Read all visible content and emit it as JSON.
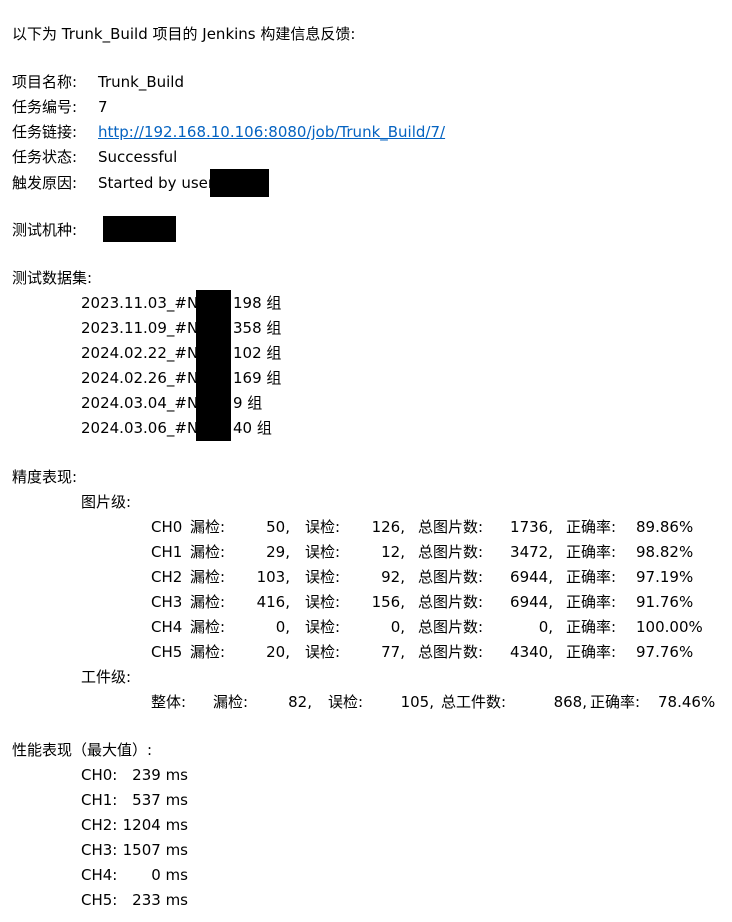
{
  "intro": "以下为 Trunk_Build 项目的 Jenkins 构建信息反馈:",
  "project": {
    "label": "项目名称:",
    "value": "Trunk_Build"
  },
  "build_no": {
    "label": "任务编号:",
    "value": "7"
  },
  "task_link": {
    "label": "任务链接:",
    "value": "http://192.168.10.106:8080/job/Trunk_Build/7/"
  },
  "task_status": {
    "label": "任务状态:",
    "value": "Successful"
  },
  "trigger": {
    "label": "触发原因:",
    "value": "Started by user"
  },
  "test_model": {
    "label": "测试机种:"
  },
  "dataset": {
    "label": "测试数据集:",
    "items": [
      {
        "date": "2023.11.03_#N_",
        "count": "198 组"
      },
      {
        "date": "2023.11.09_#N_",
        "count": "358 组"
      },
      {
        "date": "2024.02.22_#N_",
        "count": "102 组"
      },
      {
        "date": "2024.02.26_#N_",
        "count": "169 组"
      },
      {
        "date": "2024.03.04_#N_",
        "count": "9 组"
      },
      {
        "date": "2024.03.06_#N_",
        "count": "40 组"
      }
    ]
  },
  "accuracy": {
    "label": "精度表现:",
    "image_level": {
      "label": "图片级:",
      "rows": [
        {
          "ch": "CH0",
          "miss_label": "漏检:",
          "miss": "50,",
          "fp_label": "误检:",
          "fp": "126,",
          "total_label": "总图片数:",
          "total": "1736,",
          "acc_label": "正确率:",
          "acc": "89.86%"
        },
        {
          "ch": "CH1",
          "miss_label": "漏检:",
          "miss": "29,",
          "fp_label": "误检:",
          "fp": "12,",
          "total_label": "总图片数:",
          "total": "3472,",
          "acc_label": "正确率:",
          "acc": "98.82%"
        },
        {
          "ch": "CH2",
          "miss_label": "漏检:",
          "miss": "103,",
          "fp_label": "误检:",
          "fp": "92,",
          "total_label": "总图片数:",
          "total": "6944,",
          "acc_label": "正确率:",
          "acc": "97.19%"
        },
        {
          "ch": "CH3",
          "miss_label": "漏检:",
          "miss": "416,",
          "fp_label": "误检:",
          "fp": "156,",
          "total_label": "总图片数:",
          "total": "6944,",
          "acc_label": "正确率:",
          "acc": "91.76%"
        },
        {
          "ch": "CH4",
          "miss_label": "漏检:",
          "miss": "0,",
          "fp_label": "误检:",
          "fp": "0,",
          "total_label": "总图片数:",
          "total": "0,",
          "acc_label": "正确率:",
          "acc": "100.00%"
        },
        {
          "ch": "CH5",
          "miss_label": "漏检:",
          "miss": "20,",
          "fp_label": "误检:",
          "fp": "77,",
          "total_label": "总图片数:",
          "total": "4340,",
          "acc_label": "正确率:",
          "acc": "97.76%"
        }
      ]
    },
    "part_level": {
      "label": "工件级:",
      "overall": {
        "name": "整体:",
        "miss_label": "漏检:",
        "miss": "82,",
        "fp_label": "误检:",
        "fp": "105,",
        "total_label": "总工件数:",
        "total": "868,",
        "acc_label": "正确率:",
        "acc": "78.46%"
      }
    }
  },
  "performance": {
    "label": "性能表现（最大值）:",
    "rows": [
      {
        "ch": "CH0:",
        "value": "239 ms"
      },
      {
        "ch": "CH1:",
        "value": "537 ms"
      },
      {
        "ch": "CH2:",
        "value": "1204 ms"
      },
      {
        "ch": "CH3:",
        "value": "1507 ms"
      },
      {
        "ch": "CH4:",
        "value": "0 ms"
      },
      {
        "ch": "CH5:",
        "value": "233 ms"
      }
    ]
  }
}
